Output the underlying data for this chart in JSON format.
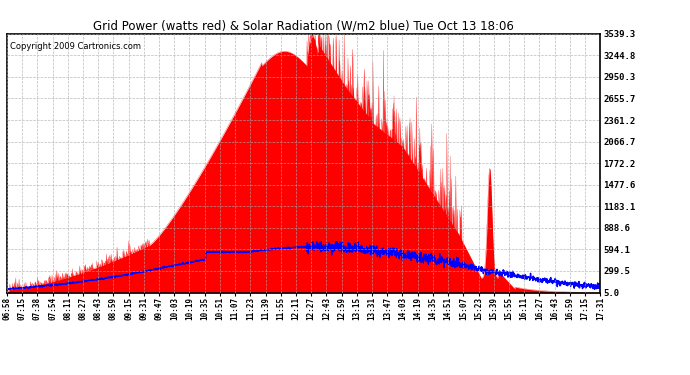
{
  "title": "Grid Power (watts red) & Solar Radiation (W/m2 blue) Tue Oct 13 18:06",
  "copyright": "Copyright 2009 Cartronics.com",
  "yticks": [
    5.0,
    299.5,
    594.1,
    888.6,
    1183.1,
    1477.6,
    1772.2,
    2066.7,
    2361.2,
    2655.7,
    2950.3,
    3244.8,
    3539.3
  ],
  "xtick_labels": [
    "06:58",
    "07:15",
    "07:38",
    "07:54",
    "08:11",
    "08:27",
    "08:43",
    "08:59",
    "09:15",
    "09:31",
    "09:47",
    "10:03",
    "10:19",
    "10:35",
    "10:51",
    "11:07",
    "11:23",
    "11:39",
    "11:55",
    "12:11",
    "12:27",
    "12:43",
    "12:59",
    "13:15",
    "13:31",
    "13:47",
    "14:03",
    "14:19",
    "14:35",
    "14:51",
    "15:07",
    "15:23",
    "15:39",
    "15:55",
    "16:11",
    "16:27",
    "16:43",
    "16:59",
    "17:15",
    "17:31"
  ],
  "bg_color": "#ffffff",
  "plot_bg_color": "#ffffff",
  "grid_color": "#aaaaaa",
  "red_color": "#ff0000",
  "blue_color": "#0000ff",
  "title_color": "#000000",
  "ylim_min": 5.0,
  "ylim_max": 3539.3,
  "figwidth": 6.9,
  "figheight": 3.75,
  "dpi": 100
}
